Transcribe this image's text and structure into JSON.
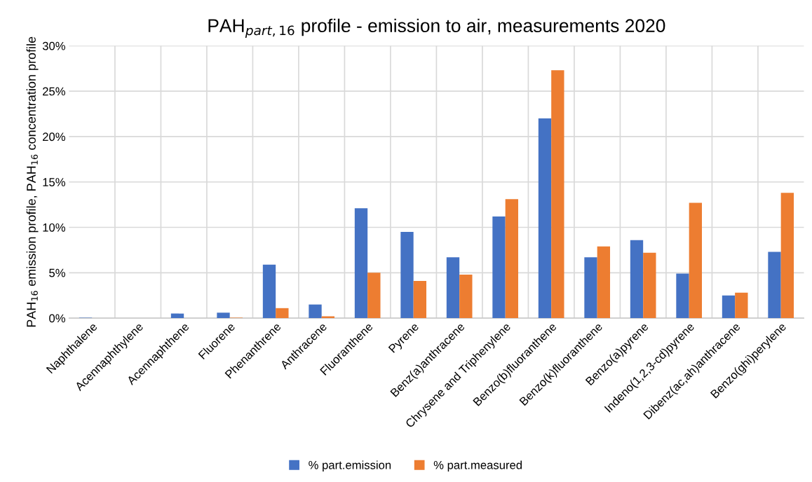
{
  "chart_data": {
    "type": "bar",
    "title": "PAH$_{part,16}$ profile - emission to air, measurements 2020",
    "ylabel": "PAH$_{16}$ emission profile, PAH$_{16}$ concentration profile",
    "categories": [
      "Naphthalene",
      "Acennaphthylene",
      "Acennaphthene",
      "Fluorene",
      "Phenanthrene",
      "Anthracene",
      "Fluoranthene",
      "Pyrene",
      "Benz(a)anthracene",
      "Chrysene and Triphenylene",
      "Benzo(b)fluoranthene",
      "Benzo(k)fluoranthene",
      "Benzo(a)pyrene",
      "Indeno(1,2,3-cd)pyrene",
      "Dibenz(ac,ah)anthracene",
      "Benzo(ghi)perylene"
    ],
    "series": [
      {
        "name": "% part.emission",
        "color": "#4472c4",
        "values": [
          0.05,
          0,
          0.5,
          0.6,
          5.9,
          1.5,
          12.1,
          9.5,
          6.7,
          11.2,
          22.0,
          6.7,
          8.6,
          4.9,
          2.5,
          7.3
        ]
      },
      {
        "name": "% part.measured",
        "color": "#ed7d31",
        "values": [
          0,
          0,
          0,
          0.05,
          1.1,
          0.2,
          5.0,
          4.1,
          4.8,
          13.1,
          27.3,
          7.9,
          7.2,
          12.7,
          2.8,
          13.8
        ]
      }
    ],
    "ylim": [
      0,
      30
    ],
    "yticks": [
      {
        "value": 0,
        "label": "0%"
      },
      {
        "value": 5,
        "label": "5%"
      },
      {
        "value": 10,
        "label": "10%"
      },
      {
        "value": 15,
        "label": "15%"
      },
      {
        "value": 20,
        "label": "20%"
      },
      {
        "value": 25,
        "label": "25%"
      },
      {
        "value": 30,
        "label": "30%"
      }
    ],
    "grid": true,
    "legend": "bottom"
  }
}
